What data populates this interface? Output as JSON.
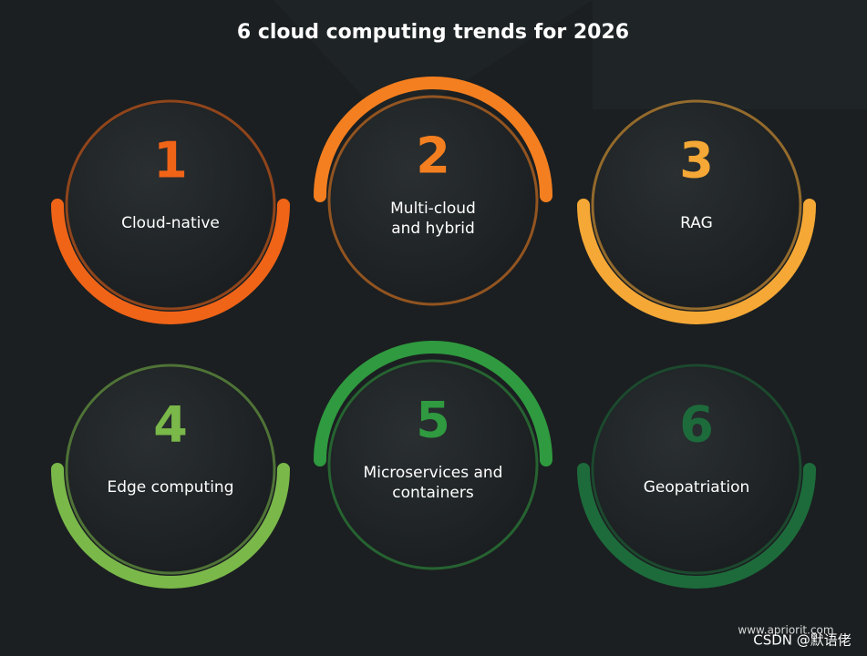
{
  "title": "6 cloud computing trends for 2026",
  "items": [
    {
      "number": "1",
      "label_lines": [
        "Cloud-native"
      ],
      "color": "#f06418"
    },
    {
      "number": "2",
      "label_lines": [
        "Multi-cloud",
        "and hybrid"
      ],
      "color": "#f47f20"
    },
    {
      "number": "3",
      "label_lines": [
        "RAG"
      ],
      "color": "#f5a836"
    },
    {
      "number": "4",
      "label_lines": [
        "Edge computing"
      ],
      "color": "#7ab84a"
    },
    {
      "number": "5",
      "label_lines": [
        "Microservices and",
        "containers"
      ],
      "color": "#2f9a3f"
    },
    {
      "number": "6",
      "label_lines": [
        "Geopatriation"
      ],
      "color": "#1d6b3b"
    }
  ],
  "footer": {
    "site": "www.apriorit.com",
    "credit": "CSDN @默语佬"
  }
}
